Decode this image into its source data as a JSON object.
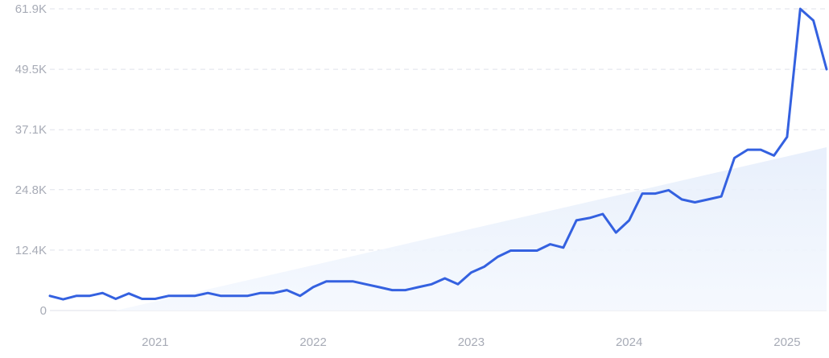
{
  "colors": {
    "line": "#3461e0",
    "trend_fill": "#e8f0fc",
    "grid": "#dfe2ea",
    "tick_text": "#a7abb6"
  },
  "chart_data": {
    "type": "line",
    "title": "",
    "xlabel": "",
    "ylabel": "",
    "grid": true,
    "ylim": [
      0,
      61900
    ],
    "xlim": [
      "2020-05",
      "2025-04"
    ],
    "y_ticks": [
      {
        "value": 0,
        "label": "0"
      },
      {
        "value": 12400,
        "label": "12.4K"
      },
      {
        "value": 24800,
        "label": "24.8K"
      },
      {
        "value": 37100,
        "label": "37.1K"
      },
      {
        "value": 49500,
        "label": "49.5K"
      },
      {
        "value": 61900,
        "label": "61.9K"
      }
    ],
    "x_ticks": [
      {
        "value": "2021-01",
        "label": "2021"
      },
      {
        "value": "2022-01",
        "label": "2022"
      },
      {
        "value": "2023-01",
        "label": "2023"
      },
      {
        "value": "2024-01",
        "label": "2024"
      },
      {
        "value": "2025-01",
        "label": "2025"
      }
    ],
    "trend": {
      "x": [
        "2020-10",
        "2025-04"
      ],
      "values": [
        0,
        33500
      ]
    },
    "series": [
      {
        "x": [
          "2020-05",
          "2020-06",
          "2020-07",
          "2020-08",
          "2020-09",
          "2020-10",
          "2020-11",
          "2020-12",
          "2021-01",
          "2021-02",
          "2021-03",
          "2021-04",
          "2021-05",
          "2021-06",
          "2021-07",
          "2021-08",
          "2021-09",
          "2021-10",
          "2021-11",
          "2021-12",
          "2022-01",
          "2022-02",
          "2022-03",
          "2022-04",
          "2022-05",
          "2022-06",
          "2022-07",
          "2022-08",
          "2022-09",
          "2022-10",
          "2022-11",
          "2022-12",
          "2023-01",
          "2023-02",
          "2023-03",
          "2023-04",
          "2023-05",
          "2023-06",
          "2023-07",
          "2023-08",
          "2023-09",
          "2023-10",
          "2023-11",
          "2023-12",
          "2024-01",
          "2024-02",
          "2024-03",
          "2024-04",
          "2024-05",
          "2024-06",
          "2024-07",
          "2024-08",
          "2024-09",
          "2024-10",
          "2024-11",
          "2024-12",
          "2025-01",
          "2025-02",
          "2025-03",
          "2025-04"
        ],
        "values": [
          3000,
          2300,
          3000,
          3000,
          3600,
          2400,
          3500,
          2400,
          2400,
          3000,
          3000,
          3000,
          3600,
          3000,
          3000,
          3000,
          3600,
          3600,
          4200,
          3000,
          4800,
          6000,
          6000,
          6000,
          5400,
          4800,
          4200,
          4200,
          4800,
          5400,
          6600,
          5400,
          7800,
          9000,
          11000,
          12300,
          12300,
          12300,
          13600,
          12900,
          18500,
          19000,
          19800,
          16000,
          18500,
          24000,
          24000,
          24700,
          22800,
          22200,
          22800,
          23400,
          31300,
          33000,
          33000,
          31800,
          35600,
          61900,
          59500,
          49500
        ]
      }
    ]
  }
}
